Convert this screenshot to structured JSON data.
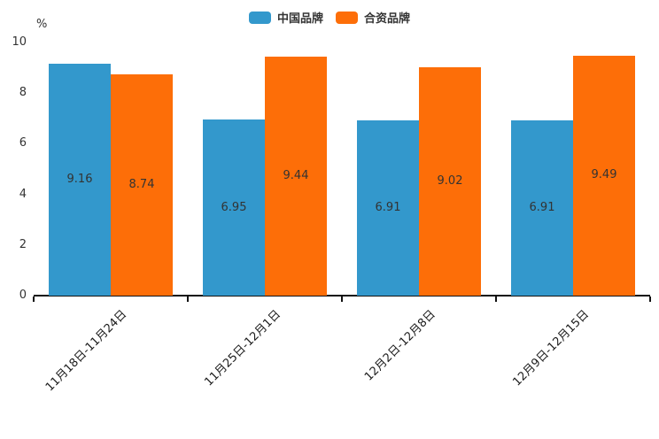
{
  "chart_data": {
    "type": "bar",
    "title": "",
    "ylabel": "%",
    "xlabel": "",
    "categories": [
      "11月18日-11月24日",
      "11月25日-12月1日",
      "12月2日-12月8日",
      "12月9日-12月15日"
    ],
    "series": [
      {
        "name": "中国品牌",
        "color": "#3398cc",
        "values": [
          9.16,
          6.95,
          6.91,
          6.91
        ]
      },
      {
        "name": "合资品牌",
        "color": "#fd6e08",
        "values": [
          8.74,
          9.44,
          9.02,
          9.49
        ]
      }
    ],
    "ylim": [
      0,
      10
    ],
    "yticks": [
      0,
      2,
      4,
      6,
      8,
      10
    ],
    "legend_position": "top-center",
    "grid": false,
    "value_labels": "centered-inside-bars",
    "x_label_rotation_deg": 45,
    "colors": {
      "axis": "#111111",
      "text": "#333333",
      "background": "#ffffff"
    }
  }
}
